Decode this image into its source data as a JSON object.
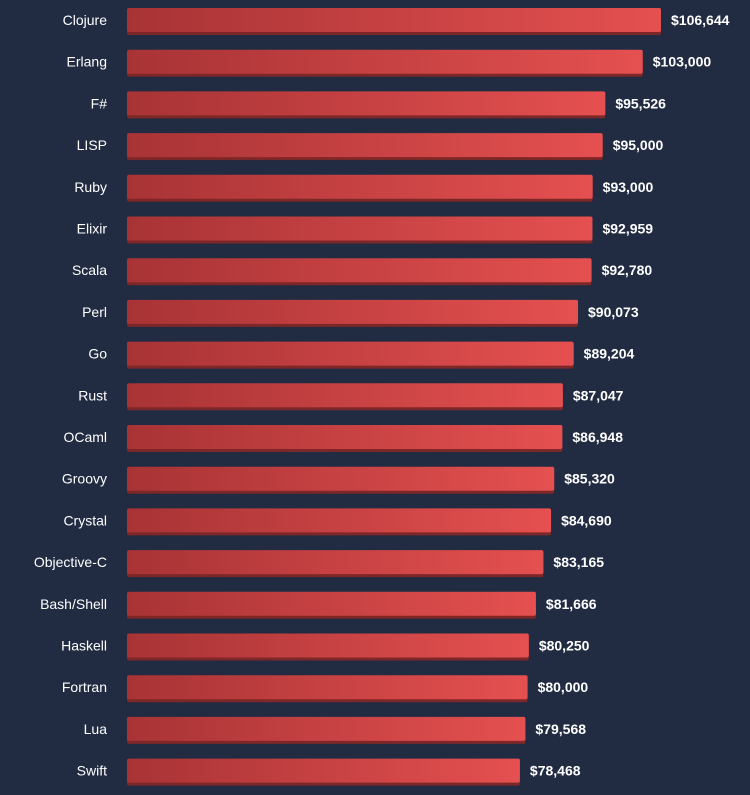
{
  "chart_data": {
    "type": "bar",
    "orientation": "horizontal",
    "title": "",
    "xlabel": "",
    "ylabel": "",
    "categories": [
      "Clojure",
      "Erlang",
      "F#",
      "LISP",
      "Ruby",
      "Elixir",
      "Scala",
      "Perl",
      "Go",
      "Rust",
      "OCaml",
      "Groovy",
      "Crystal",
      "Objective-C",
      "Bash/Shell",
      "Haskell",
      "Fortran",
      "Lua",
      "Swift"
    ],
    "values": [
      106644,
      103000,
      95526,
      95000,
      93000,
      92959,
      92780,
      90073,
      89204,
      87047,
      86948,
      85320,
      84690,
      83165,
      81666,
      80250,
      80000,
      79568,
      78468
    ],
    "value_labels": [
      "$106,644",
      "$103,000",
      "$95,526",
      "$95,000",
      "$93,000",
      "$92,959",
      "$92,780",
      "$90,073",
      "$89,204",
      "$87,047",
      "$86,948",
      "$85,320",
      "$84,690",
      "$83,165",
      "$81,666",
      "$80,250",
      "$80,000",
      "$79,568",
      "$78,468"
    ],
    "xlim": [
      0,
      106644
    ],
    "grid": false,
    "legend": "none"
  },
  "colors": {
    "background": "#212b42",
    "bar_start": "#a83335",
    "bar_end": "#e55050",
    "bar_shadow": "#7e2729",
    "label_text": "#ffffff"
  }
}
